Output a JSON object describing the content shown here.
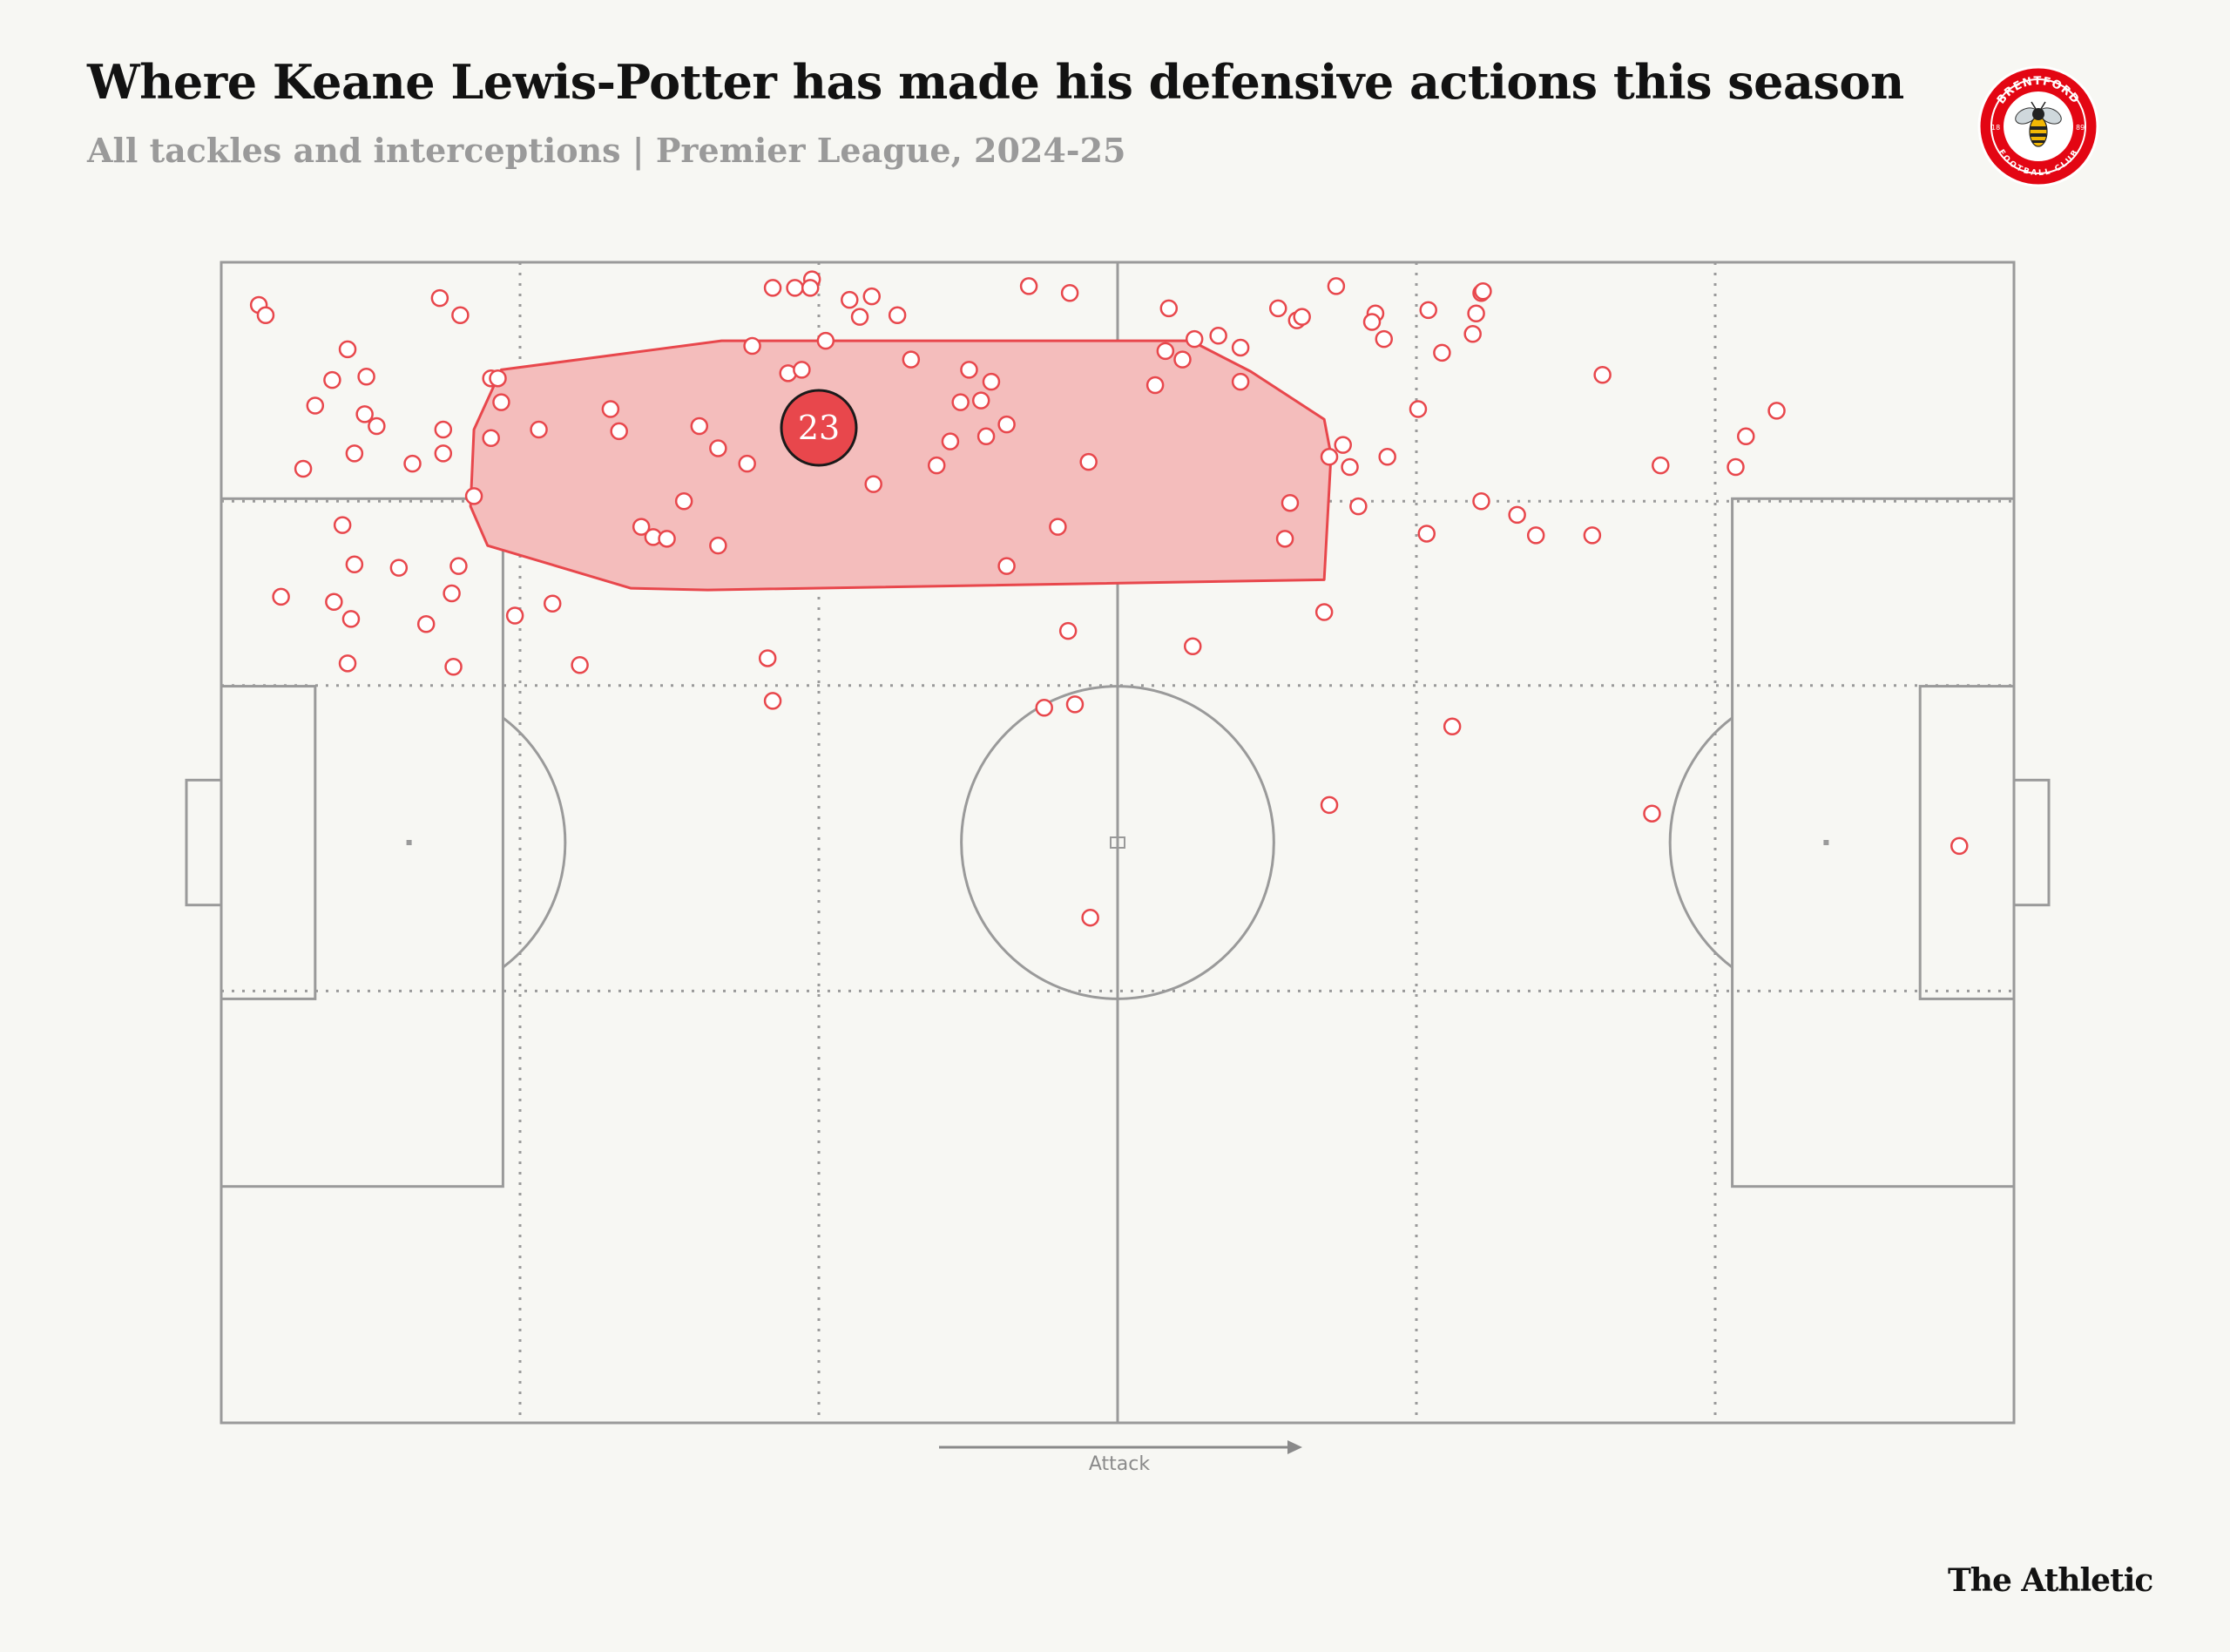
{
  "header": {
    "title": "Where Keane Lewis-Potter has made his defensive actions this season",
    "subtitle": "All tackles and interceptions | Premier League, 2024-25"
  },
  "badge": {
    "top_text": "BRENTFORD",
    "bottom_text": "FOOTBALL CLUB",
    "year_left": "18",
    "year_right": "89",
    "icon": "bee-icon",
    "color": "#e30613"
  },
  "direction_label": "Attack",
  "brand": "The Athletic",
  "colors": {
    "accent": "#e8474c",
    "hull_fill": "#f4bdbc",
    "pitch_lines": "#9a9a9a",
    "background": "#f7f7f3"
  },
  "chart_data": {
    "type": "scatter",
    "x_range": [
      0,
      105
    ],
    "y_range": [
      0,
      68
    ],
    "x_direction": "left-to-right attack",
    "average_position": {
      "x": 35,
      "y": 58.3,
      "label": "23"
    },
    "points": [
      [
        2.2,
        65.5
      ],
      [
        2.6,
        64.9
      ],
      [
        12.8,
        65.9
      ],
      [
        14.0,
        64.9
      ],
      [
        7.4,
        62.9
      ],
      [
        8.5,
        61.3
      ],
      [
        6.5,
        61.1
      ],
      [
        15.8,
        61.2
      ],
      [
        16.2,
        61.2
      ],
      [
        5.5,
        59.6
      ],
      [
        8.4,
        59.1
      ],
      [
        9.1,
        58.4
      ],
      [
        16.4,
        59.8
      ],
      [
        13.0,
        58.2
      ],
      [
        4.8,
        55.9
      ],
      [
        7.8,
        56.8
      ],
      [
        13.0,
        56.8
      ],
      [
        11.2,
        56.2
      ],
      [
        15.8,
        57.7
      ],
      [
        18.6,
        58.2
      ],
      [
        14.8,
        54.3
      ],
      [
        7.1,
        52.6
      ],
      [
        7.8,
        50.3
      ],
      [
        10.4,
        50.1
      ],
      [
        13.9,
        50.2
      ],
      [
        3.5,
        48.4
      ],
      [
        6.6,
        48.1
      ],
      [
        7.6,
        47.1
      ],
      [
        13.5,
        48.6
      ],
      [
        12.0,
        46.8
      ],
      [
        17.2,
        47.3
      ],
      [
        19.4,
        48.0
      ],
      [
        7.4,
        44.5
      ],
      [
        13.6,
        44.3
      ],
      [
        21.0,
        44.4
      ],
      [
        22.8,
        59.4
      ],
      [
        23.3,
        58.1
      ],
      [
        28.0,
        58.4
      ],
      [
        29.1,
        57.1
      ],
      [
        30.8,
        56.2
      ],
      [
        31.1,
        63.1
      ],
      [
        35.4,
        63.4
      ],
      [
        36.8,
        65.8
      ],
      [
        38.1,
        66.0
      ],
      [
        37.4,
        64.8
      ],
      [
        32.3,
        66.5
      ],
      [
        33.6,
        66.5
      ],
      [
        34.6,
        67.0
      ],
      [
        34.5,
        66.5
      ],
      [
        33.2,
        61.5
      ],
      [
        34.0,
        61.7
      ],
      [
        40.4,
        62.3
      ],
      [
        43.3,
        59.8
      ],
      [
        44.5,
        59.9
      ],
      [
        42.7,
        57.5
      ],
      [
        39.6,
        64.9
      ],
      [
        43.8,
        61.7
      ],
      [
        45.1,
        61.0
      ],
      [
        46.0,
        58.5
      ],
      [
        44.8,
        57.8
      ],
      [
        41.9,
        56.1
      ],
      [
        50.8,
        56.3
      ],
      [
        38.2,
        55.0
      ],
      [
        27.1,
        54.0
      ],
      [
        24.6,
        52.5
      ],
      [
        25.3,
        51.9
      ],
      [
        26.1,
        51.8
      ],
      [
        29.1,
        51.4
      ],
      [
        46.0,
        50.2
      ],
      [
        49.0,
        52.5
      ],
      [
        32.0,
        44.8
      ],
      [
        32.3,
        42.3
      ],
      [
        49.6,
        46.4
      ],
      [
        48.2,
        41.9
      ],
      [
        50.0,
        42.1
      ],
      [
        50.9,
        29.6
      ],
      [
        47.3,
        66.6
      ],
      [
        49.7,
        66.2
      ],
      [
        55.5,
        65.3
      ],
      [
        58.4,
        63.7
      ],
      [
        59.7,
        63.0
      ],
      [
        57.0,
        63.5
      ],
      [
        56.3,
        62.3
      ],
      [
        61.9,
        65.3
      ],
      [
        63.0,
        64.6
      ],
      [
        63.3,
        64.8
      ],
      [
        65.3,
        66.6
      ],
      [
        67.6,
        65.0
      ],
      [
        68.1,
        63.5
      ],
      [
        59.7,
        61.0
      ],
      [
        55.3,
        62.8
      ],
      [
        54.7,
        60.8
      ],
      [
        62.6,
        53.9
      ],
      [
        62.3,
        51.8
      ],
      [
        56.9,
        45.5
      ],
      [
        64.9,
        56.6
      ],
      [
        65.7,
        57.3
      ],
      [
        66.1,
        56.0
      ],
      [
        66.6,
        53.7
      ],
      [
        68.3,
        56.6
      ],
      [
        64.6,
        47.5
      ],
      [
        64.9,
        36.2
      ],
      [
        67.4,
        64.5
      ],
      [
        70.7,
        65.2
      ],
      [
        73.8,
        66.2
      ],
      [
        73.5,
        65.0
      ],
      [
        73.3,
        63.8
      ],
      [
        70.1,
        59.4
      ],
      [
        71.5,
        62.7
      ],
      [
        73.8,
        54.0
      ],
      [
        70.6,
        52.1
      ],
      [
        75.9,
        53.2
      ],
      [
        73.9,
        66.3
      ],
      [
        77.0,
        52.0
      ],
      [
        80.3,
        52.0
      ],
      [
        80.9,
        61.4
      ],
      [
        91.1,
        59.3
      ],
      [
        89.3,
        57.8
      ],
      [
        88.7,
        56.0
      ],
      [
        84.3,
        56.1
      ],
      [
        72.1,
        40.8
      ],
      [
        83.8,
        35.7
      ],
      [
        101.8,
        33.8
      ]
    ],
    "hull": [
      [
        14.8,
        58.2
      ],
      [
        16.4,
        61.7
      ],
      [
        29.3,
        63.4
      ],
      [
        56.8,
        63.4
      ],
      [
        60.3,
        61.6
      ],
      [
        64.6,
        58.8
      ],
      [
        65.0,
        56.7
      ],
      [
        64.6,
        49.4
      ],
      [
        28.5,
        48.8
      ],
      [
        24.0,
        48.9
      ],
      [
        15.6,
        51.4
      ],
      [
        14.6,
        53.7
      ]
    ]
  }
}
